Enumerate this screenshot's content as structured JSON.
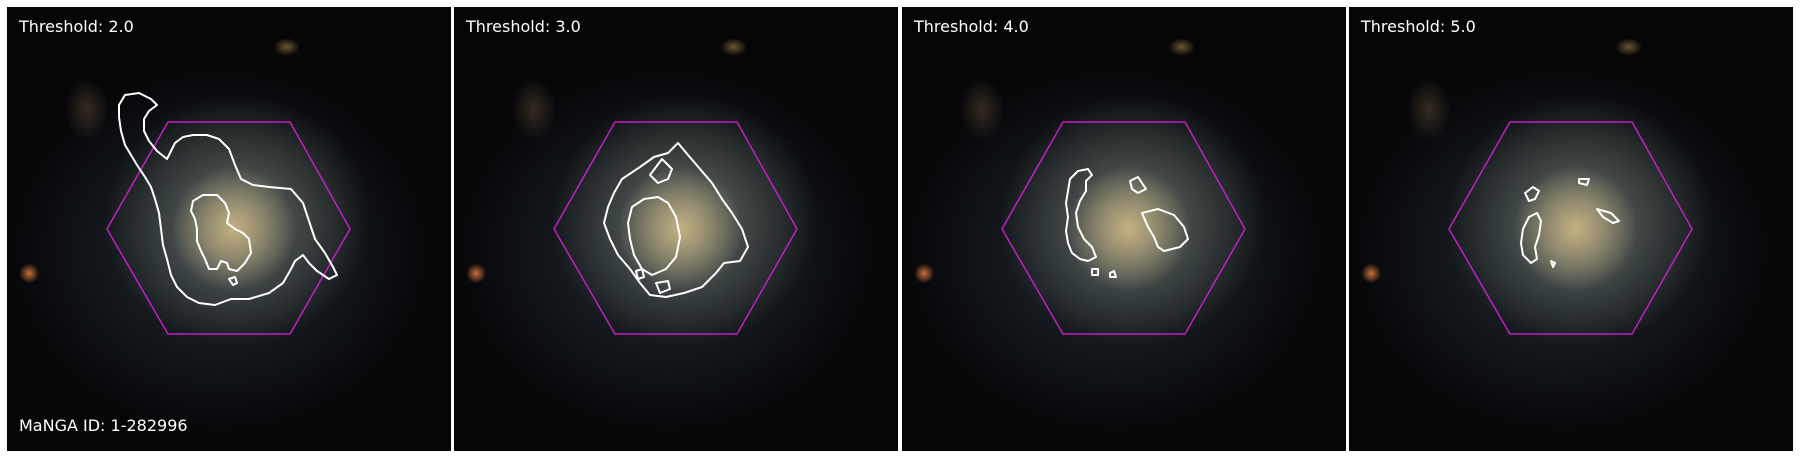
{
  "panels": [
    {
      "threshold_label": "Threshold: 2.0"
    },
    {
      "threshold_label": "Threshold: 3.0"
    },
    {
      "threshold_label": "Threshold: 4.0"
    },
    {
      "threshold_label": "Threshold: 5.0"
    }
  ],
  "manga_id_label": "MaNGA ID: 1-282996",
  "colors": {
    "hexagon": "#c020c0",
    "contour": "#ffffff",
    "background": "#060608"
  }
}
